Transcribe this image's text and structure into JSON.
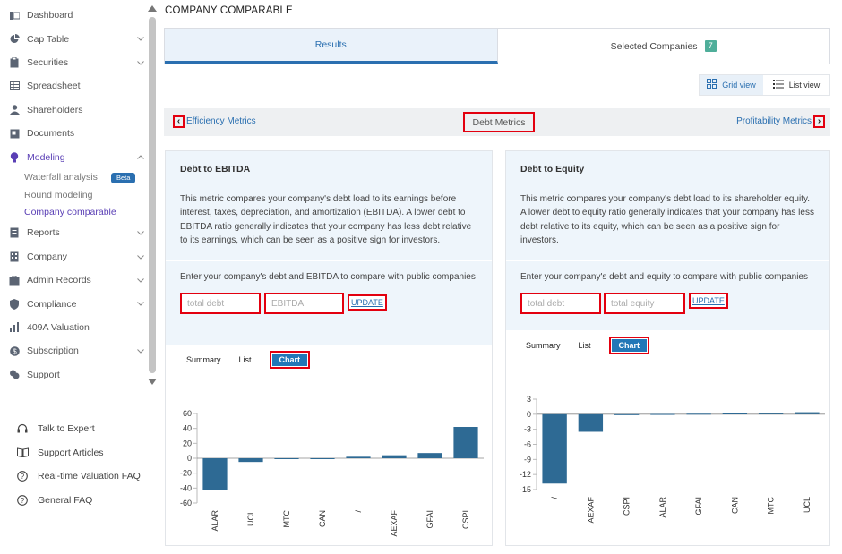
{
  "sidebar": {
    "items": [
      {
        "label": "Dashboard",
        "icon": "dashboard-icon",
        "chevron": false
      },
      {
        "label": "Cap Table",
        "icon": "pie-chart-icon",
        "chevron": true
      },
      {
        "label": "Securities",
        "icon": "clipboard-icon",
        "chevron": true
      },
      {
        "label": "Spreadsheet",
        "icon": "spreadsheet-icon",
        "chevron": false
      },
      {
        "label": "Shareholders",
        "icon": "user-icon",
        "chevron": false
      },
      {
        "label": "Documents",
        "icon": "document-icon",
        "chevron": false
      },
      {
        "label": "Modeling",
        "icon": "lightbulb-icon",
        "chevron": true,
        "active": true
      },
      {
        "label": "Reports",
        "icon": "report-icon",
        "chevron": true
      },
      {
        "label": "Company",
        "icon": "company-icon",
        "chevron": true
      },
      {
        "label": "Admin Records",
        "icon": "admin-records-icon",
        "chevron": true
      },
      {
        "label": "Compliance",
        "icon": "shield-icon",
        "chevron": true
      },
      {
        "label": "409A Valuation",
        "icon": "valuation-icon",
        "chevron": false
      },
      {
        "label": "Subscription",
        "icon": "dollar-icon",
        "chevron": true
      },
      {
        "label": "Support",
        "icon": "support-icon",
        "chevron": false
      }
    ],
    "modeling_sub": [
      {
        "label": "Waterfall analysis",
        "badge": "Beta"
      },
      {
        "label": "Round modeling"
      },
      {
        "label": "Company comparable",
        "active": true
      }
    ],
    "help": [
      {
        "label": "Talk to Expert",
        "icon": "headset-icon"
      },
      {
        "label": "Support Articles",
        "icon": "book-icon"
      },
      {
        "label": "Real-time Valuation FAQ",
        "icon": "question-circle-icon"
      },
      {
        "label": "General FAQ",
        "icon": "question-circle-icon"
      }
    ]
  },
  "page": {
    "title": "COMPANY COMPARABLE"
  },
  "tabs": {
    "results": "Results",
    "selected": "Selected Companies",
    "selected_count": "7"
  },
  "view": {
    "grid": "Grid view",
    "list": "List view"
  },
  "metrics_nav": {
    "prev": "Efficiency Metrics",
    "current": "Debt Metrics",
    "next": "Profitability Metrics"
  },
  "card1": {
    "title": "Debt to EBITDA",
    "description": "This metric compares your company's debt load to its earnings before interest, taxes, depreciation, and amortization (EBITDA). A lower debt to EBITDA ratio generally indicates that your company has less debt relative to its earnings, which can be seen as a positive sign for investors.",
    "prompt": "Enter your company's debt and EBITDA to compare with public companies",
    "input1_placeholder": "total debt",
    "input2_placeholder": "EBITDA",
    "update": "UPDATE",
    "tab_summary": "Summary",
    "tab_list": "List",
    "tab_chart": "Chart"
  },
  "card2": {
    "title": "Debt to Equity",
    "description": "This metric compares your company's debt load to its shareholder equity. A lower debt to equity ratio generally indicates that your company has less debt relative to its equity, which can be seen as a positive sign for investors.",
    "prompt": "Enter your company's debt and equity to compare with public companies",
    "input1_placeholder": "total debt",
    "input2_placeholder": "total equity",
    "update": "UPDATE",
    "tab_summary": "Summary",
    "tab_list": "List",
    "tab_chart": "Chart"
  },
  "chart_data": [
    {
      "type": "bar",
      "categories": [
        "ALAR",
        "UCL",
        "MTC",
        "CAN",
        "/",
        "AEXAF",
        "GFAI",
        "CSPI"
      ],
      "values": [
        -43,
        -5,
        -1,
        -1,
        2,
        4,
        7,
        42
      ],
      "ylim": [
        -60,
        60
      ],
      "yticks": [
        60,
        40,
        20,
        0,
        -20,
        -40,
        -60
      ],
      "color": "#2e6a94"
    },
    {
      "type": "bar",
      "categories": [
        "/",
        "AEXAF",
        "CSPI",
        "ALAR",
        "GFAI",
        "CAN",
        "MTC",
        "UCL"
      ],
      "values": [
        -13.8,
        -3.5,
        -0.1,
        0.05,
        0.1,
        0.15,
        0.3,
        0.4
      ],
      "ylim": [
        -15,
        3
      ],
      "yticks": [
        3,
        0,
        -3,
        -6,
        -9,
        -12,
        -15
      ],
      "color": "#2e6a94"
    }
  ]
}
